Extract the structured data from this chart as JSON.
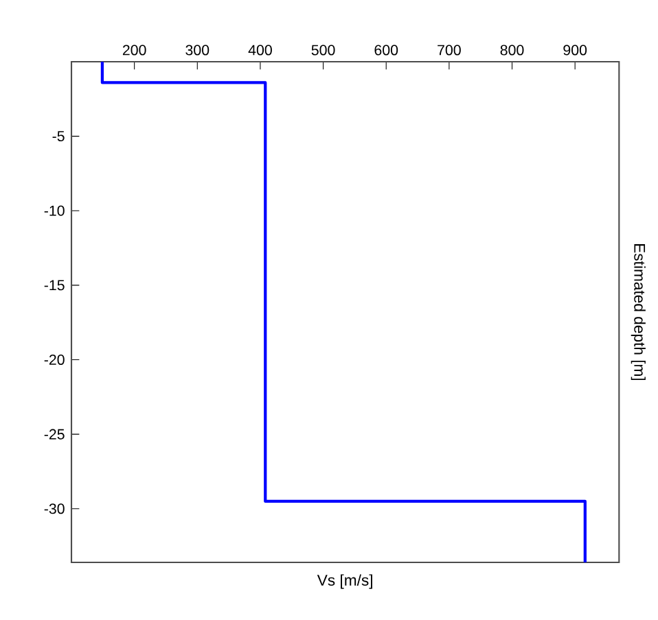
{
  "chart_data": {
    "type": "line",
    "xlabel": "Vs [m/s]",
    "ylabel": "Estimated depth [m]",
    "x": [
      149,
      149,
      408,
      408,
      916,
      916
    ],
    "series": [
      {
        "color": "#0000ff",
        "values": [
          0,
          -1.4,
          -1.4,
          -29.5,
          -29.5,
          -33.6
        ]
      }
    ],
    "xlim": [
      100,
      970
    ],
    "xticks": [
      200,
      300,
      400,
      500,
      600,
      700,
      800,
      900
    ],
    "ylim": [
      -33.6,
      0
    ],
    "yticks": [
      -30,
      -25,
      -20,
      -15,
      -10,
      -5
    ],
    "grid": false,
    "marker": "none",
    "line_style": "solid"
  }
}
